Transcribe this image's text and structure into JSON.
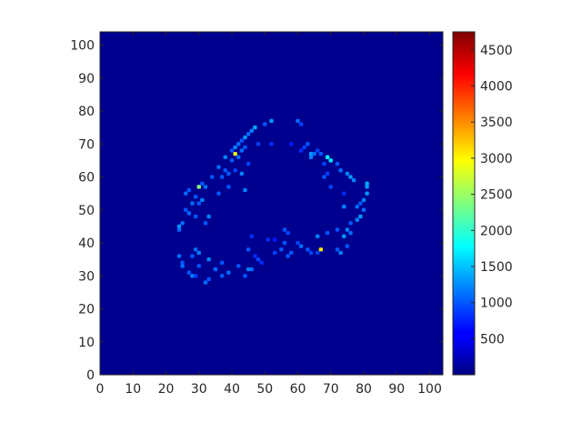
{
  "chart_data": {
    "type": "heatmap",
    "title": "",
    "xlabel": "",
    "ylabel": "",
    "xlim": [
      0,
      104
    ],
    "ylim": [
      0,
      104
    ],
    "x_ticks": [
      0,
      10,
      20,
      30,
      40,
      50,
      60,
      70,
      80,
      90,
      100
    ],
    "y_ticks": [
      0,
      10,
      20,
      30,
      40,
      50,
      60,
      70,
      80,
      90,
      100
    ],
    "x_tick_labels": [
      "0",
      "10",
      "20",
      "30",
      "40",
      "50",
      "60",
      "70",
      "80",
      "90",
      "100"
    ],
    "y_tick_labels": [
      "0",
      "10",
      "20",
      "30",
      "40",
      "50",
      "60",
      "70",
      "80",
      "90",
      "100"
    ],
    "colormap": "jet",
    "background_value": 0,
    "colorbar": {
      "range": [
        0,
        4750
      ],
      "ticks": [
        500,
        1000,
        1500,
        2000,
        2500,
        3000,
        3500,
        4000,
        4500
      ],
      "tick_labels": [
        "500",
        "1000",
        "1500",
        "2000",
        "2500",
        "3000",
        "3500",
        "4000",
        "4500"
      ]
    },
    "grid": false,
    "nonzero_cells": [
      [
        52,
        77,
        1300
      ],
      [
        60,
        77,
        1100
      ],
      [
        50,
        76,
        1000
      ],
      [
        61,
        76,
        900
      ],
      [
        47,
        75,
        1400
      ],
      [
        46,
        74,
        1200
      ],
      [
        45,
        73,
        1100
      ],
      [
        44,
        72,
        1300
      ],
      [
        43,
        71,
        1000
      ],
      [
        42,
        70,
        1100
      ],
      [
        48,
        70,
        900
      ],
      [
        52,
        70,
        800
      ],
      [
        58,
        70,
        700
      ],
      [
        63,
        70,
        1000
      ],
      [
        41,
        69,
        1200
      ],
      [
        44,
        69,
        1000
      ],
      [
        62,
        69,
        900
      ],
      [
        40,
        68,
        1000
      ],
      [
        43,
        68,
        1100
      ],
      [
        61,
        68,
        800
      ],
      [
        66,
        68,
        900
      ],
      [
        41,
        67,
        2900
      ],
      [
        64,
        67,
        1300
      ],
      [
        65,
        67,
        1100
      ],
      [
        67,
        67,
        1000
      ],
      [
        38,
        66,
        1200
      ],
      [
        42,
        66,
        1100
      ],
      [
        64,
        66,
        1200
      ],
      [
        69,
        66,
        1800
      ],
      [
        70,
        65,
        1700
      ],
      [
        40,
        65,
        1000
      ],
      [
        45,
        64,
        900
      ],
      [
        68,
        64,
        900
      ],
      [
        72,
        64,
        1000
      ],
      [
        36,
        63,
        1100
      ],
      [
        38,
        62,
        1000
      ],
      [
        41,
        62,
        900
      ],
      [
        73,
        62,
        1100
      ],
      [
        43,
        61,
        1200
      ],
      [
        39,
        61,
        1000
      ],
      [
        69,
        61,
        900
      ],
      [
        75,
        61,
        1200
      ],
      [
        34,
        60,
        1000
      ],
      [
        37,
        60,
        1000
      ],
      [
        68,
        60,
        1000
      ],
      [
        76,
        60,
        1300
      ],
      [
        77,
        59,
        1200
      ],
      [
        31,
        58,
        1000
      ],
      [
        32,
        57,
        1100
      ],
      [
        39,
        57,
        1000
      ],
      [
        30,
        57,
        2400
      ],
      [
        44,
        56,
        1200
      ],
      [
        70,
        57,
        900
      ],
      [
        81,
        58,
        1400
      ],
      [
        81,
        57,
        1300
      ],
      [
        27,
        56,
        1000
      ],
      [
        26,
        55,
        1100
      ],
      [
        36,
        55,
        1000
      ],
      [
        74,
        55,
        800
      ],
      [
        81,
        55,
        1300
      ],
      [
        29,
        54,
        1000
      ],
      [
        31,
        53,
        1200
      ],
      [
        80,
        53,
        1200
      ],
      [
        28,
        52,
        1100
      ],
      [
        30,
        52,
        1000
      ],
      [
        79,
        52,
        1000
      ],
      [
        74,
        51,
        1200
      ],
      [
        78,
        51,
        1100
      ],
      [
        26,
        50,
        1000
      ],
      [
        27,
        49,
        1100
      ],
      [
        80,
        50,
        1100
      ],
      [
        33,
        48,
        1200
      ],
      [
        29,
        48,
        1000
      ],
      [
        79,
        48,
        1300
      ],
      [
        78,
        47,
        1200
      ],
      [
        25,
        46,
        1100
      ],
      [
        32,
        46,
        1000
      ],
      [
        76,
        46,
        1000
      ],
      [
        24,
        45,
        1300
      ],
      [
        24,
        44,
        1100
      ],
      [
        72,
        44,
        1000
      ],
      [
        75,
        44,
        1200
      ],
      [
        76,
        43,
        1100
      ],
      [
        74,
        42,
        1300
      ],
      [
        56,
        44,
        1000
      ],
      [
        57,
        43,
        900
      ],
      [
        69,
        43,
        1000
      ],
      [
        66,
        42,
        1200
      ],
      [
        46,
        42,
        800
      ],
      [
        51,
        41,
        800
      ],
      [
        53,
        41,
        700
      ],
      [
        56,
        40,
        1000
      ],
      [
        60,
        40,
        900
      ],
      [
        61,
        39,
        1100
      ],
      [
        29,
        38,
        1100
      ],
      [
        30,
        37,
        1200
      ],
      [
        45,
        38,
        1000
      ],
      [
        63,
        38,
        1000
      ],
      [
        64,
        37,
        900
      ],
      [
        67,
        38,
        3100
      ],
      [
        72,
        38,
        1000
      ],
      [
        73,
        37,
        1200
      ],
      [
        75,
        39,
        1000
      ],
      [
        28,
        36,
        1000
      ],
      [
        58,
        37,
        1000
      ],
      [
        66,
        37,
        900
      ],
      [
        24,
        36,
        1100
      ],
      [
        33,
        35,
        1200
      ],
      [
        37,
        34,
        1000
      ],
      [
        47,
        36,
        800
      ],
      [
        57,
        36,
        1000
      ],
      [
        25,
        34,
        1000
      ],
      [
        25,
        33,
        1100
      ],
      [
        30,
        33,
        1000
      ],
      [
        35,
        32,
        1100
      ],
      [
        42,
        33,
        1000
      ],
      [
        45,
        32,
        1200
      ],
      [
        46,
        32,
        1100
      ],
      [
        39,
        31,
        1100
      ],
      [
        27,
        31,
        1000
      ],
      [
        28,
        30,
        1200
      ],
      [
        44,
        30,
        1000
      ],
      [
        29,
        30,
        900
      ],
      [
        32,
        28,
        1100
      ],
      [
        33,
        29,
        1000
      ],
      [
        37,
        30,
        1000
      ],
      [
        48,
        35,
        900
      ],
      [
        49,
        34,
        800
      ],
      [
        53,
        37,
        900
      ],
      [
        55,
        38,
        1000
      ]
    ]
  }
}
